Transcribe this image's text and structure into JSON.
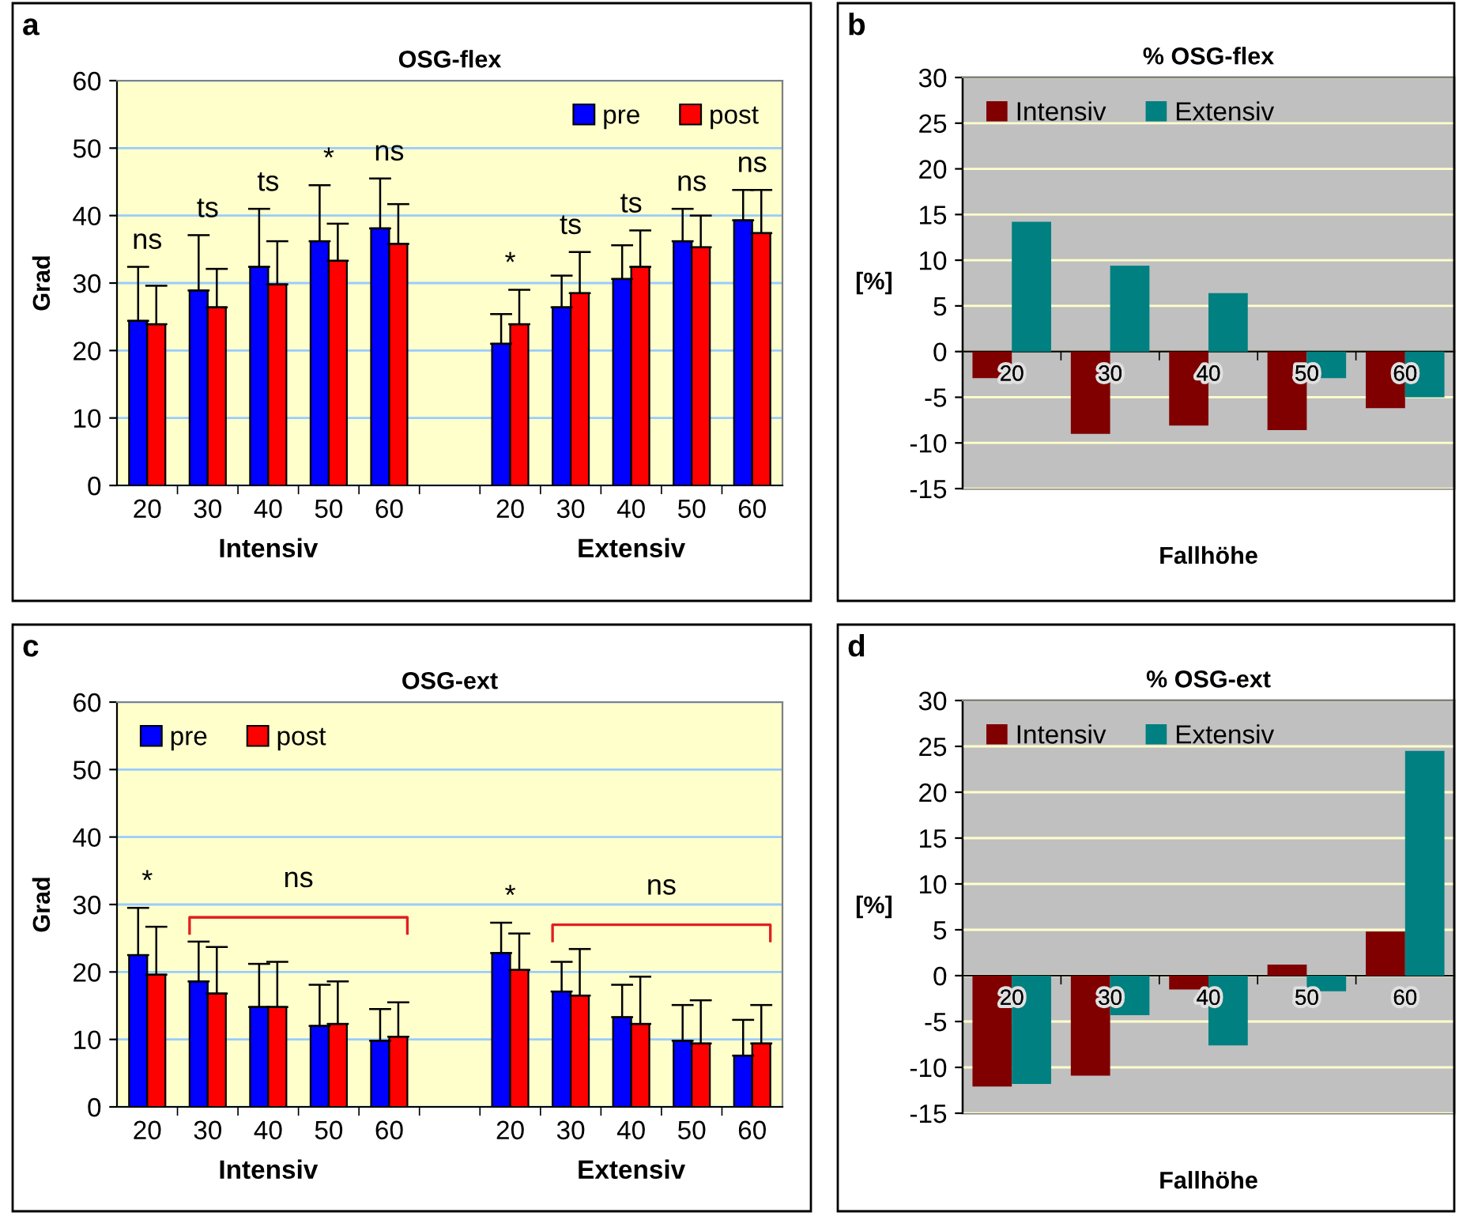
{
  "chart_data": [
    {
      "type": "bar",
      "title": "OSG-flex",
      "ylabel": "Grad",
      "categories": [
        "20",
        "30",
        "40",
        "50",
        "60",
        null,
        "20",
        "30",
        "40",
        "50",
        "60"
      ],
      "series": [
        {
          "name": "pre",
          "color": "#0000ff",
          "values": [
            24.4,
            28.9,
            32.4,
            36.2,
            38.1,
            null,
            21.0,
            26.4,
            30.6,
            36.2,
            39.3
          ],
          "errors": [
            [
              24.4,
              32.4
            ],
            [
              28.9,
              37.1
            ],
            [
              32.4,
              41.0
            ],
            [
              36.2,
              44.5
            ],
            [
              38.1,
              45.5
            ],
            null,
            [
              21.0,
              25.4
            ],
            [
              26.4,
              31.1
            ],
            [
              30.6,
              35.6
            ],
            [
              36.2,
              41.0
            ],
            [
              39.3,
              43.8
            ]
          ]
        },
        {
          "name": "post",
          "color": "#ff0000",
          "values": [
            23.9,
            26.4,
            29.8,
            33.3,
            35.8,
            null,
            23.9,
            28.5,
            32.4,
            35.3,
            37.4
          ],
          "errors": [
            [
              23.9,
              29.6
            ],
            [
              26.4,
              32.1
            ],
            [
              29.8,
              36.2
            ],
            [
              33.3,
              38.8
            ],
            [
              35.8,
              41.7
            ],
            null,
            [
              23.9,
              29.0
            ],
            [
              28.5,
              34.6
            ],
            [
              32.4,
              37.8
            ],
            [
              35.3,
              40.0
            ],
            [
              37.4,
              43.8
            ]
          ]
        }
      ],
      "ylim": [
        0,
        60
      ],
      "yticks": [
        0,
        10,
        20,
        30,
        40,
        50,
        60
      ],
      "grid": "y",
      "legend": "top right",
      "annotations": [
        "a",
        "Intensiv",
        "Extensiv",
        "ns",
        "ts",
        "ts",
        "*",
        "ns",
        "*",
        "ts",
        "ts",
        "ns",
        "ns"
      ]
    },
    {
      "type": "bar",
      "title": "% OSG-flex",
      "xlabel": "Fallhöhe",
      "ylabel": "[%]",
      "categories": [
        "20",
        "30",
        "40",
        "50",
        "60"
      ],
      "series": [
        {
          "name": "Intensiv",
          "color": "#800000",
          "values": [
            -2.9,
            -9.0,
            -8.1,
            -8.6,
            -6.2
          ]
        },
        {
          "name": "Extensiv",
          "color": "#008080",
          "values": [
            14.2,
            9.4,
            6.4,
            -2.9,
            -5.0
          ]
        }
      ],
      "ylim": [
        -15,
        30
      ],
      "yticks": [
        -15,
        -10,
        -5,
        0,
        5,
        10,
        15,
        20,
        25,
        30
      ],
      "grid": "y",
      "legend": "top left",
      "annotations": [
        "b"
      ]
    },
    {
      "type": "bar",
      "title": "OSG-ext",
      "ylabel": "Grad",
      "categories": [
        "20",
        "30",
        "40",
        "50",
        "60",
        null,
        "20",
        "30",
        "40",
        "50",
        "60"
      ],
      "series": [
        {
          "name": "pre",
          "color": "#0000ff",
          "values": [
            22.5,
            18.6,
            14.8,
            12.0,
            9.8,
            null,
            22.8,
            17.1,
            13.3,
            9.8,
            7.6
          ],
          "errors": [
            [
              22.5,
              29.5
            ],
            [
              18.6,
              24.5
            ],
            [
              14.8,
              21.2
            ],
            [
              12.0,
              18.1
            ],
            [
              9.8,
              14.5
            ],
            null,
            [
              22.8,
              27.3
            ],
            [
              17.1,
              21.5
            ],
            [
              13.3,
              18.1
            ],
            [
              9.8,
              15.1
            ],
            [
              7.6,
              12.9
            ]
          ]
        },
        {
          "name": "post",
          "color": "#ff0000",
          "values": [
            19.6,
            16.8,
            14.8,
            12.3,
            10.4,
            null,
            20.3,
            16.5,
            12.3,
            9.4,
            9.4
          ],
          "errors": [
            [
              19.6,
              26.7
            ],
            [
              16.8,
              23.7
            ],
            [
              14.8,
              21.5
            ],
            [
              12.3,
              18.6
            ],
            [
              10.4,
              15.5
            ],
            null,
            [
              20.3,
              25.7
            ],
            [
              16.5,
              23.4
            ],
            [
              12.3,
              19.3
            ],
            [
              9.4,
              15.8
            ],
            [
              9.4,
              15.1
            ]
          ]
        }
      ],
      "ylim": [
        0,
        60
      ],
      "yticks": [
        0,
        10,
        20,
        30,
        40,
        50,
        60
      ],
      "grid": "y",
      "legend": "top left",
      "annotations": [
        "c",
        "Intensiv",
        "Extensiv",
        "*",
        "ns",
        "*",
        "ns"
      ]
    },
    {
      "type": "bar",
      "title": "% OSG-ext",
      "xlabel": "Fallhöhe",
      "ylabel": "[%]",
      "categories": [
        "20",
        "30",
        "40",
        "50",
        "60"
      ],
      "series": [
        {
          "name": "Intensiv",
          "color": "#800000",
          "values": [
            -12.1,
            -10.9,
            -1.5,
            1.2,
            4.8
          ]
        },
        {
          "name": "Extensiv",
          "color": "#008080",
          "values": [
            -11.8,
            -4.3,
            -7.6,
            -1.7,
            24.5
          ]
        }
      ],
      "ylim": [
        -15,
        30
      ],
      "yticks": [
        -15,
        -10,
        -5,
        0,
        5,
        10,
        15,
        20,
        25,
        30
      ],
      "grid": "y",
      "legend": "top left",
      "annotations": [
        "d"
      ]
    }
  ]
}
